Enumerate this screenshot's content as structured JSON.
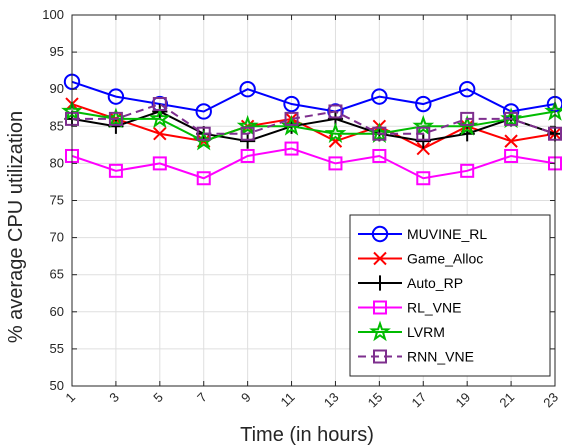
{
  "chart_data": {
    "type": "line",
    "xlabel": "Time (in hours)",
    "ylabel": "% average CPU utilization",
    "x": [
      1,
      3,
      5,
      7,
      9,
      11,
      13,
      15,
      17,
      19,
      21,
      23
    ],
    "x_tick_labels": [
      "1",
      "3",
      "5",
      "7",
      "9",
      "11",
      "13",
      "15",
      "17",
      "19",
      "21",
      "23"
    ],
    "xlim": [
      1,
      23
    ],
    "ylim": [
      50,
      100
    ],
    "y_ticks": [
      50,
      55,
      60,
      65,
      70,
      75,
      80,
      85,
      90,
      95,
      100
    ],
    "grid": true,
    "legend_position": "lower-right",
    "series": [
      {
        "name": "MUVINE_RL",
        "color": "#0000ff",
        "marker": "circle",
        "line": "solid",
        "values": [
          91,
          89,
          88,
          87,
          90,
          88,
          87,
          89,
          88,
          90,
          87,
          88
        ]
      },
      {
        "name": "Game_Alloc",
        "color": "#ff0000",
        "marker": "x",
        "line": "solid",
        "values": [
          88,
          86,
          84,
          83,
          85,
          86,
          83,
          85,
          82,
          85,
          83,
          84
        ]
      },
      {
        "name": "Auto_RP",
        "color": "#000000",
        "marker": "plus",
        "line": "solid",
        "values": [
          86,
          85,
          87,
          84,
          83,
          85,
          86,
          84,
          83,
          84,
          86,
          84
        ]
      },
      {
        "name": "RL_VNE",
        "color": "#ff00ff",
        "marker": "square",
        "line": "solid",
        "values": [
          81,
          79,
          80,
          78,
          81,
          82,
          80,
          81,
          78,
          79,
          81,
          80
        ]
      },
      {
        "name": "LVRM",
        "color": "#00bb00",
        "marker": "star",
        "line": "solid",
        "values": [
          87,
          86,
          86,
          83,
          85,
          85,
          84,
          84,
          85,
          85,
          86,
          87
        ]
      },
      {
        "name": "RNN_VNE",
        "color": "#7e2f8e",
        "marker": "square",
        "line": "dashed",
        "values": [
          86,
          86,
          88,
          84,
          84,
          86,
          87,
          84,
          84,
          86,
          86,
          84
        ]
      }
    ]
  }
}
